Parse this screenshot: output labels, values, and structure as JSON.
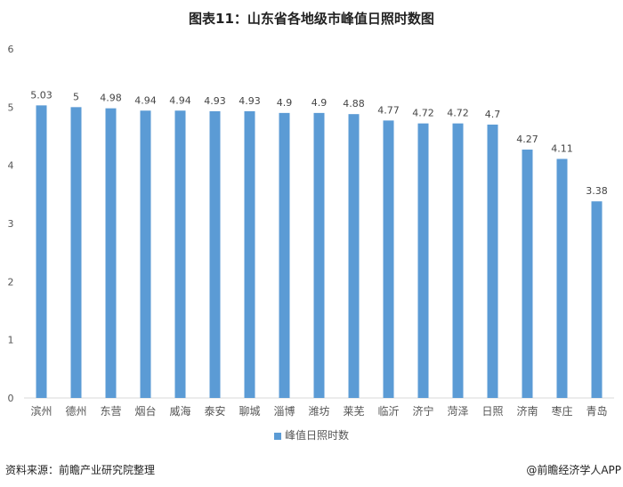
{
  "title": "图表11：山东省各地级市峰值日照时数图",
  "chart_data": {
    "type": "bar",
    "title": "图表11：山东省各地级市峰值日照时数图",
    "categories": [
      "滨州",
      "德州",
      "东营",
      "烟台",
      "威海",
      "泰安",
      "聊城",
      "淄博",
      "潍坊",
      "莱芜",
      "临沂",
      "济宁",
      "菏泽",
      "日照",
      "济南",
      "枣庄",
      "青岛"
    ],
    "series": [
      {
        "name": "峰值日照时数",
        "values": [
          5.03,
          5,
          4.98,
          4.94,
          4.94,
          4.93,
          4.93,
          4.9,
          4.9,
          4.88,
          4.77,
          4.72,
          4.72,
          4.7,
          4.27,
          4.11,
          3.38
        ]
      }
    ],
    "data_labels": [
      "5.03",
      "5",
      "4.98",
      "4.94",
      "4.94",
      "4.93",
      "4.93",
      "4.9",
      "4.9",
      "4.88",
      "4.77",
      "4.72",
      "4.72",
      "4.7",
      "4.27",
      "4.11",
      "3.38"
    ],
    "yticks": [
      "0",
      "1",
      "2",
      "3",
      "4",
      "5",
      "6"
    ],
    "ylim": [
      0,
      6
    ],
    "grid": false,
    "legend_position": "bottom",
    "bar_color": "#5b9bd5"
  },
  "legend_label": "峰值日照时数",
  "source": "资料来源：前瞻产业研究院整理",
  "credit": "@前瞻经济学人APP"
}
